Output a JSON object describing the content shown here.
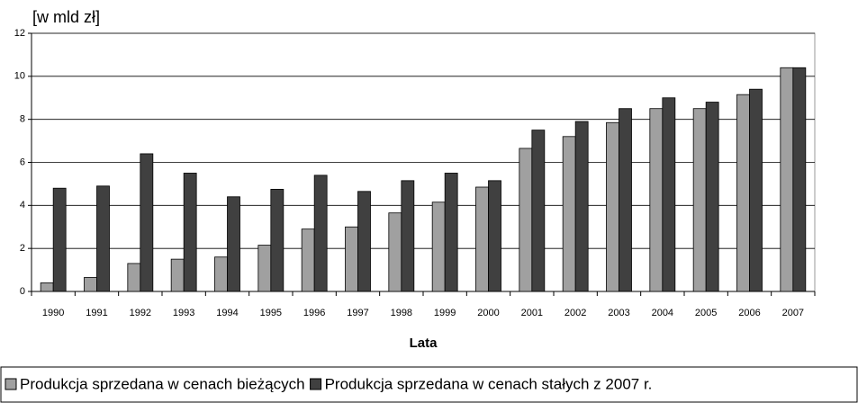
{
  "chart_data": {
    "type": "bar",
    "y_label": "[w mld zł]",
    "x_label": "Lata",
    "categories": [
      "1990",
      "1991",
      "1992",
      "1993",
      "1994",
      "1995",
      "1996",
      "1997",
      "1998",
      "1999",
      "2000",
      "2001",
      "2002",
      "2003",
      "2004",
      "2005",
      "2006",
      "2007"
    ],
    "series": [
      {
        "name": "Produkcja sprzedana w  cenach bieżących",
        "color": "#a0a0a0",
        "values": [
          0.4,
          0.65,
          1.3,
          1.5,
          1.6,
          2.15,
          2.9,
          3.0,
          3.65,
          4.15,
          4.85,
          6.65,
          7.2,
          7.85,
          8.5,
          8.5,
          9.15,
          10.4
        ]
      },
      {
        "name": "Produkcja sprzedana w  cenach stałych z 2007 r.",
        "color": "#404040",
        "values": [
          4.8,
          4.9,
          6.4,
          5.5,
          4.4,
          4.75,
          5.4,
          4.65,
          5.15,
          5.5,
          5.15,
          7.5,
          7.9,
          8.5,
          9.0,
          8.8,
          9.4,
          10.4
        ]
      }
    ],
    "ylim": [
      0,
      12
    ],
    "yticks": [
      0,
      2,
      4,
      6,
      8,
      10,
      12
    ],
    "grid": true,
    "legend": "bottom"
  }
}
